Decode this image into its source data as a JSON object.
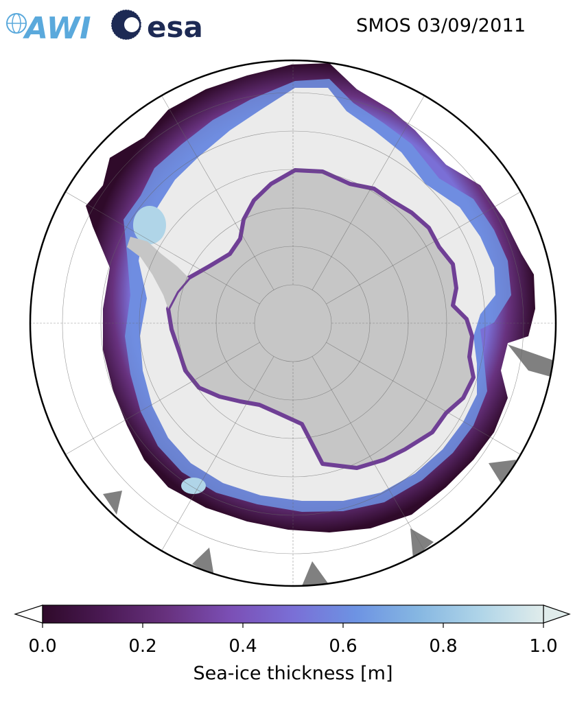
{
  "header": {
    "title": "SMOS 03/09/2011",
    "logos": [
      {
        "name": "awi-logo",
        "text": "AWI",
        "color": "#5aa9dc"
      },
      {
        "name": "esa-logo",
        "text": "esa",
        "color": "#1d2a54"
      }
    ]
  },
  "map": {
    "projection": "south-polar-stereographic",
    "colors": {
      "land": "#c6c6c6",
      "land_shadow": "#808080",
      "ocean": "#ffffff",
      "thick_ice": "#ebebeb",
      "grid": "#666666",
      "boundary": "#000000"
    }
  },
  "colorbar": {
    "label": "Sea-ice thickness [m]",
    "min": 0.0,
    "max": 1.0,
    "extend": "both",
    "ticks": [
      "0.0",
      "0.2",
      "0.4",
      "0.6",
      "0.8",
      "1.0"
    ],
    "colormap": [
      "#2f0a2a",
      "#4b1a55",
      "#68327f",
      "#7b4fb5",
      "#7a6fd6",
      "#6d93e3",
      "#86b7e2",
      "#b0d5e8",
      "#e0eceb"
    ]
  }
}
